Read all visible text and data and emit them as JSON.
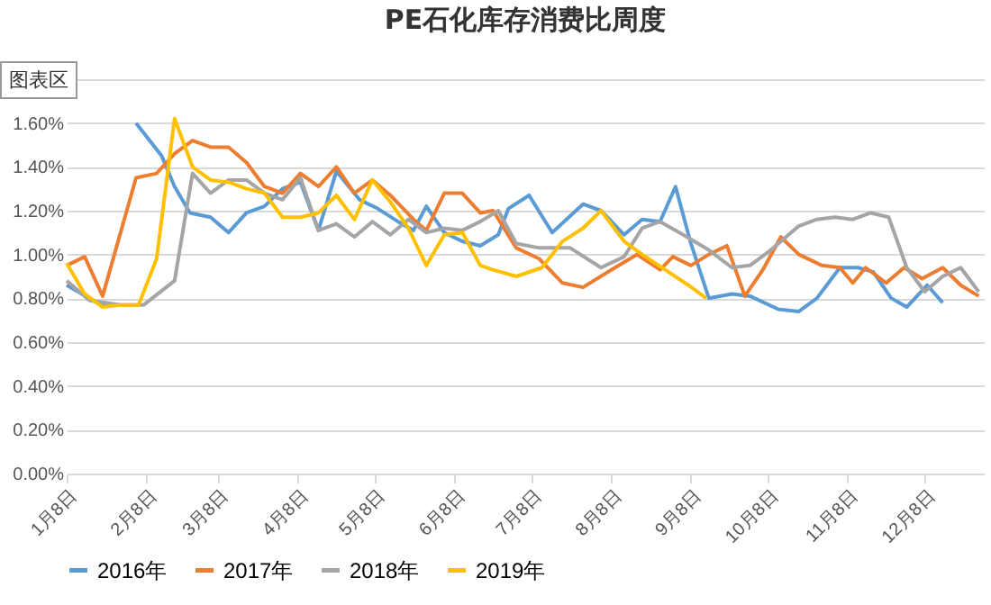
{
  "chart_data": {
    "type": "line",
    "title": "PE石化库存消费比周度",
    "annotations": [
      "图表区"
    ],
    "xlim": [
      "--01-08",
      "--12-31"
    ],
    "xticks": [
      {
        "value": "--01-08",
        "label": "1月8日"
      },
      {
        "value": "--02-08",
        "label": "2月8日"
      },
      {
        "value": "--03-08",
        "label": "3月8日"
      },
      {
        "value": "--04-08",
        "label": "4月8日"
      },
      {
        "value": "--05-08",
        "label": "5月8日"
      },
      {
        "value": "--06-08",
        "label": "6月8日"
      },
      {
        "value": "--07-08",
        "label": "7月8日"
      },
      {
        "value": "--08-08",
        "label": "8月8日"
      },
      {
        "value": "--09-08",
        "label": "9月8日"
      },
      {
        "value": "--10-08",
        "label": "10月8日"
      },
      {
        "value": "--11-08",
        "label": "11月8日"
      },
      {
        "value": "--12-08",
        "label": "12月8日"
      }
    ],
    "ylim": [
      0,
      1.8
    ],
    "yticks": [
      {
        "value": 0,
        "label": "0.00%"
      },
      {
        "value": 0.2,
        "label": "0.20%"
      },
      {
        "value": 0.4,
        "label": "0.40%"
      },
      {
        "value": 0.6,
        "label": "0.60%"
      },
      {
        "value": 0.8,
        "label": "0.80%"
      },
      {
        "value": 1.0,
        "label": "1.00%"
      },
      {
        "value": 1.2,
        "label": "1.20%"
      },
      {
        "value": 1.4,
        "label": "1.40%"
      },
      {
        "value": 1.6,
        "label": "1.60%"
      },
      {
        "value": 1.8,
        "label": null
      }
    ],
    "grid": "y",
    "legend": "bottom",
    "series": [
      {
        "name": "2016年",
        "color": "#5b9bd5",
        "x": [
          "--01-08",
          "--01-20",
          "--01-28",
          "--02-01",
          "--02-04",
          "--02-14",
          "--02-19",
          "--02-25",
          "--03-05",
          "--03-12",
          "--03-19",
          "--03-26",
          "--04-02",
          "--04-09",
          "--04-16",
          "--04-23",
          "--05-02",
          "--05-09",
          "--05-17",
          "--05-23",
          "--05-28",
          "--06-04",
          "--06-11",
          "--06-18",
          "--06-25",
          "--06-29",
          "--07-07",
          "--07-16",
          "--07-28",
          "--08-04",
          "--08-13",
          "--08-20",
          "--08-27",
          "--09-02",
          "--09-08",
          "--09-15",
          "--09-24",
          "--10-01",
          "--10-12",
          "--10-20",
          "--10-27",
          "--11-05",
          "--11-12",
          "--11-18",
          "--11-25",
          "--12-01",
          "--12-09",
          "--12-15"
        ],
        "values": [
          0.86,
          0.78,
          0.77,
          null,
          1.6,
          1.45,
          1.31,
          1.19,
          1.17,
          1.1,
          1.19,
          1.22,
          1.3,
          1.33,
          1.11,
          1.38,
          1.25,
          1.21,
          1.15,
          1.11,
          1.22,
          1.1,
          1.06,
          1.04,
          1.09,
          1.21,
          1.27,
          1.1,
          1.23,
          1.2,
          1.09,
          1.16,
          1.15,
          1.31,
          1.05,
          0.8,
          0.82,
          0.81,
          0.75,
          0.74,
          0.8,
          0.94,
          0.94,
          0.92,
          0.8,
          0.76,
          0.86,
          0.78
        ]
      },
      {
        "name": "2017年",
        "color": "#ed7d31",
        "x": [
          "--01-08",
          "--01-15",
          "--01-22",
          "--02-04",
          "--02-12",
          "--02-19",
          "--02-26",
          "--03-05",
          "--03-12",
          "--03-19",
          "--03-26",
          "--04-02",
          "--04-09",
          "--04-16",
          "--04-23",
          "--04-30",
          "--05-07",
          "--05-14",
          "--05-23",
          "--05-28",
          "--06-04",
          "--06-11",
          "--06-18",
          "--06-23",
          "--07-02",
          "--07-11",
          "--07-20",
          "--07-28",
          "--08-08",
          "--08-18",
          "--08-27",
          "--09-01",
          "--09-08",
          "--09-15",
          "--09-22",
          "--09-29",
          "--10-06",
          "--10-13",
          "--10-20",
          "--10-29",
          "--11-05",
          "--11-10",
          "--11-15",
          "--11-23",
          "--11-30",
          "--12-07",
          "--12-15",
          "--12-22",
          "--12-29"
        ],
        "values": [
          0.95,
          0.99,
          0.81,
          1.35,
          1.37,
          1.46,
          1.52,
          1.49,
          1.49,
          1.42,
          1.31,
          1.28,
          1.37,
          1.31,
          1.4,
          1.28,
          1.34,
          1.27,
          1.16,
          1.11,
          1.28,
          1.28,
          1.19,
          1.2,
          1.03,
          0.98,
          0.87,
          0.85,
          0.93,
          1.0,
          0.93,
          0.99,
          0.95,
          1.0,
          1.04,
          0.81,
          0.93,
          1.08,
          1.0,
          0.95,
          0.94,
          0.87,
          0.94,
          0.87,
          0.94,
          0.89,
          0.94,
          0.86,
          0.81
        ]
      },
      {
        "name": "2018年",
        "color": "#a5a5a5",
        "x": [
          "--01-08",
          "--01-17",
          "--01-29",
          "--02-07",
          "--02-19",
          "--02-26",
          "--03-05",
          "--03-12",
          "--03-19",
          "--03-26",
          "--04-02",
          "--04-09",
          "--04-16",
          "--04-23",
          "--04-30",
          "--05-07",
          "--05-14",
          "--05-21",
          "--05-28",
          "--06-04",
          "--06-11",
          "--06-18",
          "--06-25",
          "--07-02",
          "--07-11",
          "--07-23",
          "--08-04",
          "--08-13",
          "--08-20",
          "--08-27",
          "--09-05",
          "--09-15",
          "--09-24",
          "--10-01",
          "--10-08",
          "--10-15",
          "--10-20",
          "--10-27",
          "--11-03",
          "--11-10",
          "--11-17",
          "--11-24",
          "--12-01",
          "--12-08",
          "--12-15",
          "--12-22",
          "--12-29"
        ],
        "values": [
          0.88,
          0.79,
          0.77,
          0.77,
          0.88,
          1.37,
          1.28,
          1.34,
          1.34,
          1.28,
          1.25,
          1.35,
          1.11,
          1.14,
          1.08,
          1.15,
          1.09,
          1.16,
          1.1,
          1.12,
          1.11,
          1.15,
          1.2,
          1.05,
          1.03,
          1.03,
          0.94,
          0.99,
          1.12,
          1.15,
          1.09,
          1.02,
          0.94,
          0.95,
          1.01,
          1.08,
          1.13,
          1.16,
          1.17,
          1.16,
          1.19,
          1.17,
          0.94,
          0.83,
          0.9,
          0.94,
          0.83
        ]
      },
      {
        "name": "2019年",
        "color": "#ffc000",
        "x": [
          "--01-08",
          "--01-15",
          "--01-22",
          "--01-29",
          "--02-05",
          "--02-12",
          "--02-19",
          "--02-26",
          "--03-05",
          "--03-12",
          "--03-19",
          "--03-26",
          "--04-02",
          "--04-09",
          "--04-16",
          "--04-23",
          "--04-30",
          "--05-07",
          "--05-14",
          "--05-21",
          "--05-28",
          "--06-04",
          "--06-11",
          "--06-18",
          "--06-23",
          "--07-02",
          "--07-12",
          "--07-20",
          "--07-28",
          "--08-04",
          "--08-13",
          "--08-20",
          "--08-29",
          "--09-07",
          "--09-14"
        ],
        "values": [
          0.96,
          0.82,
          0.76,
          0.77,
          0.77,
          0.98,
          1.62,
          1.4,
          1.34,
          1.33,
          1.3,
          1.28,
          1.17,
          1.17,
          1.19,
          1.27,
          1.16,
          1.34,
          1.24,
          1.12,
          0.95,
          1.09,
          1.1,
          0.95,
          0.93,
          0.9,
          0.94,
          1.06,
          1.12,
          1.2,
          1.06,
          1.0,
          0.93,
          0.86,
          0.8
        ]
      }
    ]
  }
}
